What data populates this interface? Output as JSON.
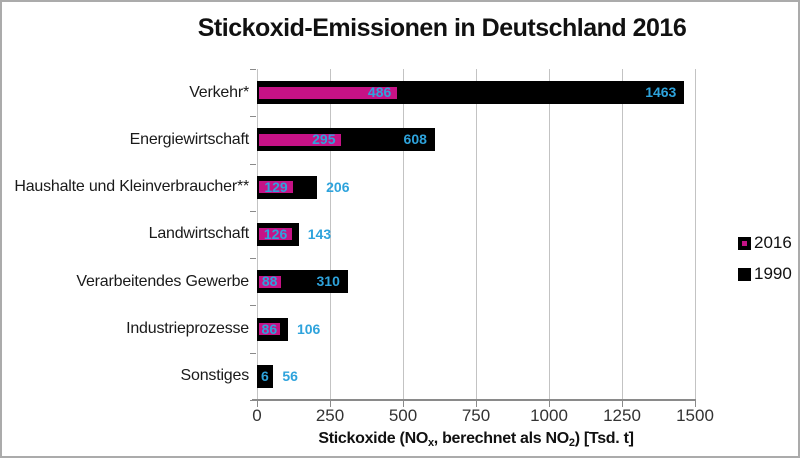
{
  "chart_data": {
    "type": "bar",
    "orientation": "horizontal",
    "title": "Stickoxid-Emissionen in Deutschland 2016",
    "categories": [
      "Verkehr*",
      "Energiewirtschaft",
      "Haushalte und Kleinverbraucher**",
      "Landwirtschaft",
      "Verarbeitendes Gewerbe",
      "Industrieprozesse",
      "Sonstiges"
    ],
    "series": [
      {
        "name": "2016",
        "color": "#C61286",
        "values": [
          486,
          295,
          129,
          126,
          88,
          86,
          6
        ]
      },
      {
        "name": "1990",
        "color": "#000000",
        "values": [
          1463,
          608,
          206,
          143,
          310,
          106,
          56
        ]
      }
    ],
    "xlabel": "Stickoxide (NOx, berechnet als NO2) [Tsd. t]",
    "xlabel_parts": [
      {
        "text": "Stickoxide (NO",
        "sub": false
      },
      {
        "text": "x",
        "sub": true
      },
      {
        "text": ", berechnet als NO",
        "sub": false
      },
      {
        "text": "2",
        "sub": true
      },
      {
        "text": ") [Tsd. t]",
        "sub": false
      }
    ],
    "xlim": [
      0,
      1500
    ],
    "xticks": [
      0,
      250,
      500,
      750,
      1000,
      1250,
      1500
    ],
    "grid": true,
    "legend_position": "right",
    "value_label_color": "#2EA3DC",
    "gridline_color": "#C3C3C3",
    "axis_color": "#8A8A8A",
    "background_color": "#FFFFFF"
  }
}
